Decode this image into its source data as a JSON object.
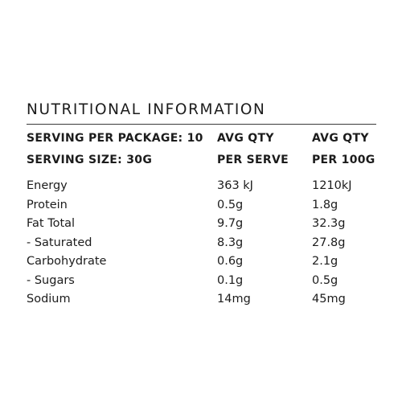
{
  "panel": {
    "title": "NUTRITIONAL INFORMATION",
    "header": {
      "serving_per_package": "SERVING PER PACKAGE: 10",
      "serving_size": "SERVING SIZE: 30G",
      "col2_line1": "AVG QTY",
      "col2_line2": "PER SERVE",
      "col3_line1": "AVG QTY",
      "col3_line2": "PER 100G"
    },
    "rows": [
      {
        "label": "Energy",
        "per_serve": "363 kJ",
        "per_100g": "1210kJ"
      },
      {
        "label": "Protein",
        "per_serve": "0.5g",
        "per_100g": "1.8g"
      },
      {
        "label": "Fat Total",
        "per_serve": "9.7g",
        "per_100g": "32.3g"
      },
      {
        "label": "- Saturated",
        "per_serve": "8.3g",
        "per_100g": "27.8g"
      },
      {
        "label": "Carbohydrate",
        "per_serve": "0.6g",
        "per_100g": "2.1g"
      },
      {
        "label": "- Sugars",
        "per_serve": "0.1g",
        "per_100g": "0.5g"
      },
      {
        "label": "Sodium",
        "per_serve": "14mg",
        "per_100g": "45mg"
      }
    ]
  }
}
